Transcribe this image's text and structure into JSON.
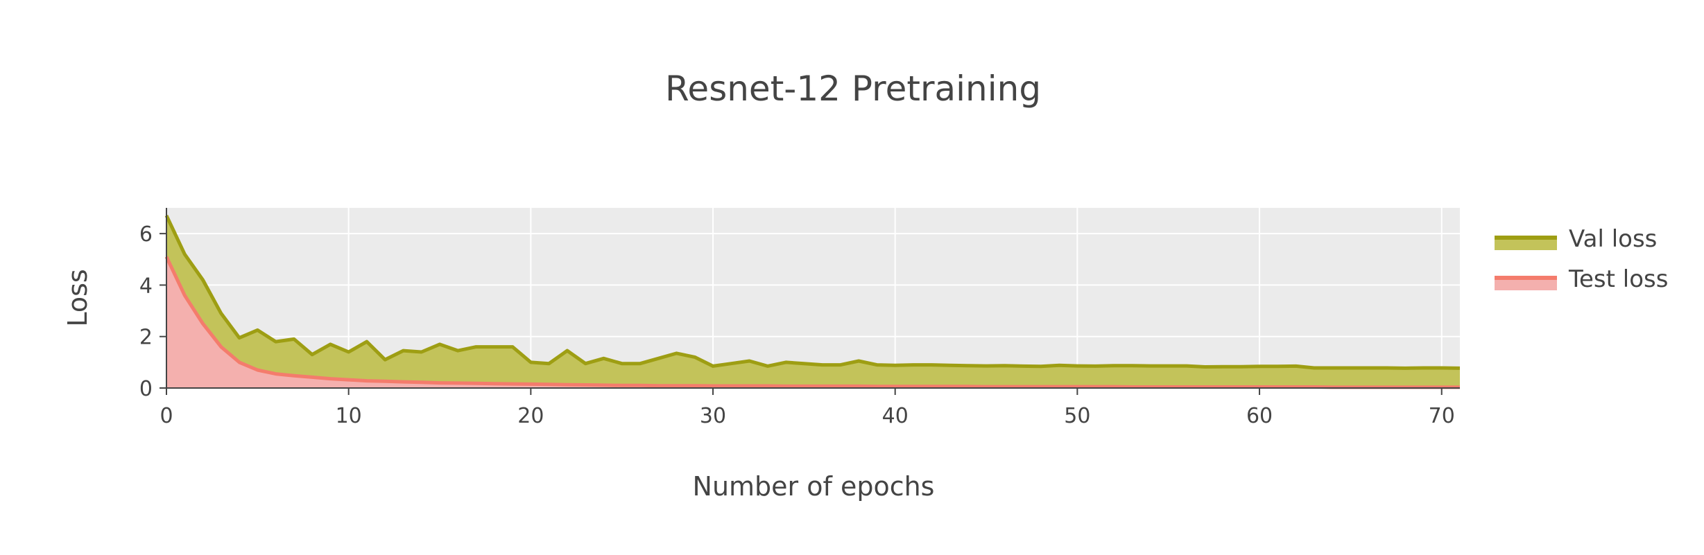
{
  "chart_data": {
    "type": "area",
    "title": "Resnet-12 Pretraining",
    "xlabel": "Number of epochs",
    "ylabel": "Loss",
    "xlim": [
      0,
      71
    ],
    "ylim": [
      0,
      7
    ],
    "x_ticks": [
      0,
      10,
      20,
      30,
      40,
      50,
      60,
      70
    ],
    "y_ticks": [
      0,
      2,
      4,
      6
    ],
    "grid": true,
    "legend_position": "right",
    "plot_background": "#ebebeb",
    "series": [
      {
        "name": "Val loss",
        "color": "#9e9e13",
        "fill": "#c3c35a",
        "x": [
          0,
          1,
          2,
          3,
          4,
          5,
          6,
          7,
          8,
          9,
          10,
          11,
          12,
          13,
          14,
          15,
          16,
          17,
          18,
          19,
          20,
          21,
          22,
          23,
          24,
          25,
          26,
          27,
          28,
          29,
          30,
          31,
          32,
          33,
          34,
          35,
          36,
          37,
          38,
          39,
          40,
          41,
          42,
          43,
          44,
          45,
          46,
          47,
          48,
          49,
          50,
          51,
          52,
          53,
          54,
          55,
          56,
          57,
          58,
          59,
          60,
          61,
          62,
          63,
          64,
          65,
          66,
          67,
          68,
          69,
          70,
          71
        ],
        "values": [
          6.7,
          5.2,
          4.2,
          2.9,
          1.95,
          2.25,
          1.8,
          1.9,
          1.3,
          1.7,
          1.4,
          1.8,
          1.1,
          1.45,
          1.4,
          1.7,
          1.45,
          1.6,
          1.6,
          1.6,
          1.0,
          0.95,
          1.45,
          0.95,
          1.15,
          0.95,
          0.95,
          1.15,
          1.35,
          1.2,
          0.85,
          0.95,
          1.05,
          0.85,
          1.0,
          0.95,
          0.9,
          0.9,
          1.05,
          0.9,
          0.88,
          0.9,
          0.9,
          0.88,
          0.87,
          0.86,
          0.87,
          0.85,
          0.84,
          0.88,
          0.86,
          0.85,
          0.87,
          0.87,
          0.86,
          0.86,
          0.86,
          0.82,
          0.83,
          0.83,
          0.84,
          0.84,
          0.85,
          0.78,
          0.78,
          0.78,
          0.78,
          0.78,
          0.77,
          0.78,
          0.78,
          0.77
        ]
      },
      {
        "name": "Test loss",
        "color": "#f47c6c",
        "fill": "#f4b0ae",
        "x": [
          0,
          1,
          2,
          3,
          4,
          5,
          6,
          7,
          8,
          9,
          10,
          11,
          12,
          13,
          14,
          15,
          16,
          17,
          18,
          19,
          20,
          21,
          22,
          23,
          24,
          25,
          26,
          27,
          28,
          29,
          30,
          31,
          32,
          33,
          34,
          35,
          36,
          37,
          38,
          39,
          40,
          41,
          42,
          43,
          44,
          45,
          46,
          47,
          48,
          49,
          50,
          51,
          52,
          53,
          54,
          55,
          56,
          57,
          58,
          59,
          60,
          61,
          62,
          63,
          64,
          65,
          66,
          67,
          68,
          69,
          70,
          71
        ],
        "values": [
          5.1,
          3.6,
          2.5,
          1.6,
          1.0,
          0.7,
          0.55,
          0.48,
          0.42,
          0.36,
          0.32,
          0.28,
          0.26,
          0.24,
          0.22,
          0.2,
          0.19,
          0.18,
          0.17,
          0.16,
          0.15,
          0.14,
          0.13,
          0.12,
          0.11,
          0.1,
          0.1,
          0.09,
          0.09,
          0.09,
          0.08,
          0.08,
          0.08,
          0.08,
          0.07,
          0.07,
          0.07,
          0.07,
          0.07,
          0.06,
          0.06,
          0.06,
          0.06,
          0.06,
          0.06,
          0.05,
          0.05,
          0.05,
          0.05,
          0.05,
          0.05,
          0.05,
          0.05,
          0.04,
          0.04,
          0.04,
          0.04,
          0.04,
          0.04,
          0.04,
          0.04,
          0.04,
          0.04,
          0.04,
          0.03,
          0.03,
          0.03,
          0.03,
          0.03,
          0.03,
          0.03,
          0.03
        ]
      }
    ]
  }
}
